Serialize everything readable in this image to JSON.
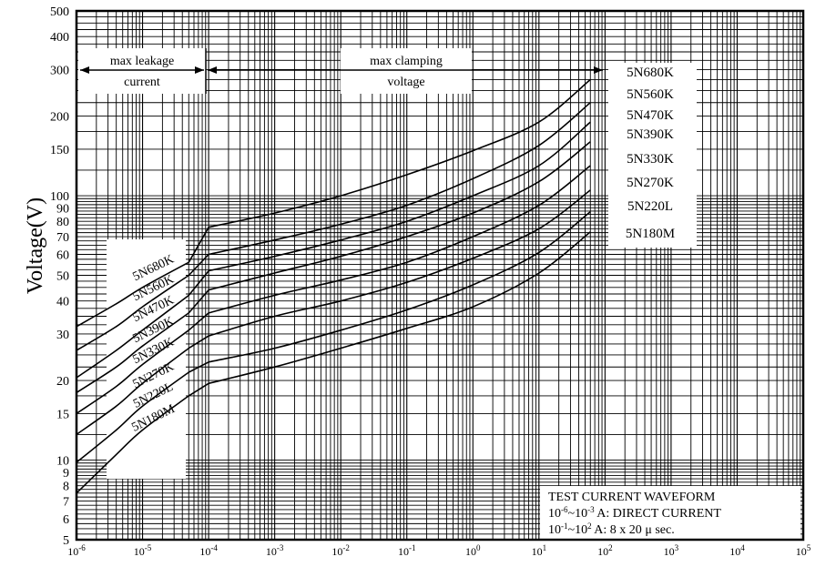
{
  "chart_data": {
    "type": "line",
    "title": "",
    "ylabel": "Voltage(V)",
    "xlabel": "",
    "xscale": "log",
    "yscale": "log",
    "xlim": [
      1e-06,
      100000
    ],
    "ylim": [
      5,
      500
    ],
    "grid": true,
    "y_ticks": [
      {
        "v": 5,
        "label": "5"
      },
      {
        "v": 6,
        "label": "6"
      },
      {
        "v": 7,
        "label": "7"
      },
      {
        "v": 8,
        "label": "8"
      },
      {
        "v": 9,
        "label": "9"
      },
      {
        "v": 10,
        "label": "10"
      },
      {
        "v": 15,
        "label": "15"
      },
      {
        "v": 20,
        "label": "20"
      },
      {
        "v": 30,
        "label": "30"
      },
      {
        "v": 40,
        "label": "40"
      },
      {
        "v": 50,
        "label": "50"
      },
      {
        "v": 60,
        "label": "60"
      },
      {
        "v": 70,
        "label": "70"
      },
      {
        "v": 80,
        "label": "80"
      },
      {
        "v": 90,
        "label": "90"
      },
      {
        "v": 100,
        "label": "100"
      },
      {
        "v": 150,
        "label": "150"
      },
      {
        "v": 200,
        "label": "200"
      },
      {
        "v": 300,
        "label": "300"
      },
      {
        "v": 400,
        "label": "400"
      },
      {
        "v": 500,
        "label": "500"
      }
    ],
    "x_ticks": [
      {
        "v": 1e-06,
        "base": "10",
        "exp": "-6"
      },
      {
        "v": 1e-05,
        "base": "10",
        "exp": "-5"
      },
      {
        "v": 0.0001,
        "base": "10",
        "exp": "-4"
      },
      {
        "v": 0.001,
        "base": "10",
        "exp": "-3"
      },
      {
        "v": 0.01,
        "base": "10",
        "exp": "-2"
      },
      {
        "v": 0.1,
        "base": "10",
        "exp": "-1"
      },
      {
        "v": 1,
        "base": "10",
        "exp": "0"
      },
      {
        "v": 10,
        "base": "10",
        "exp": "1"
      },
      {
        "v": 100,
        "base": "10",
        "exp": "2"
      },
      {
        "v": 1000,
        "base": "10",
        "exp": "3"
      },
      {
        "v": 10000,
        "base": "10",
        "exp": "4"
      },
      {
        "v": 100000,
        "base": "10",
        "exp": "5"
      }
    ],
    "series": [
      {
        "name": "5N680K",
        "leakage": [
          [
            1e-06,
            32
          ],
          [
            4e-06,
            39
          ],
          [
            1e-05,
            45
          ],
          [
            5e-05,
            56
          ]
        ],
        "clamping": [
          [
            0.0001,
            76
          ],
          [
            0.001,
            86
          ],
          [
            0.01,
            100
          ],
          [
            0.1,
            120
          ],
          [
            1,
            148
          ],
          [
            10,
            190
          ],
          [
            60,
            275
          ]
        ]
      },
      {
        "name": "5N560K",
        "leakage": [
          [
            1e-06,
            26
          ],
          [
            4e-06,
            32
          ],
          [
            1e-05,
            38
          ],
          [
            5e-05,
            50
          ]
        ],
        "clamping": [
          [
            0.0001,
            60
          ],
          [
            0.001,
            68
          ],
          [
            0.01,
            78
          ],
          [
            0.1,
            92
          ],
          [
            1,
            116
          ],
          [
            10,
            155
          ],
          [
            60,
            225
          ]
        ]
      },
      {
        "name": "5N470K",
        "leakage": [
          [
            1e-06,
            20.5
          ],
          [
            4e-06,
            26
          ],
          [
            1e-05,
            31
          ],
          [
            5e-05,
            42
          ]
        ],
        "clamping": [
          [
            0.0001,
            52
          ],
          [
            0.001,
            59
          ],
          [
            0.01,
            68
          ],
          [
            0.1,
            80
          ],
          [
            1,
            100
          ],
          [
            10,
            130
          ],
          [
            60,
            190
          ]
        ]
      },
      {
        "name": "5N390K",
        "leakage": [
          [
            1e-06,
            18
          ],
          [
            4e-06,
            22.5
          ],
          [
            1e-05,
            27
          ],
          [
            5e-05,
            36
          ]
        ],
        "clamping": [
          [
            0.0001,
            44
          ],
          [
            0.001,
            51
          ],
          [
            0.01,
            59
          ],
          [
            0.1,
            70
          ],
          [
            1,
            86
          ],
          [
            10,
            113
          ],
          [
            60,
            160
          ]
        ]
      },
      {
        "name": "5N330K",
        "leakage": [
          [
            1e-06,
            15
          ],
          [
            4e-06,
            19
          ],
          [
            1e-05,
            23
          ],
          [
            5e-05,
            31
          ]
        ],
        "clamping": [
          [
            0.0001,
            36
          ],
          [
            0.001,
            42
          ],
          [
            0.01,
            48
          ],
          [
            0.1,
            56
          ],
          [
            1,
            70
          ],
          [
            10,
            92
          ],
          [
            60,
            130
          ]
        ]
      },
      {
        "name": "5N270K",
        "leakage": [
          [
            1e-06,
            12.5
          ],
          [
            4e-06,
            16
          ],
          [
            1e-05,
            19.5
          ],
          [
            5e-05,
            26.5
          ]
        ],
        "clamping": [
          [
            0.0001,
            29.5
          ],
          [
            0.001,
            35
          ],
          [
            0.01,
            40
          ],
          [
            0.1,
            47
          ],
          [
            1,
            58
          ],
          [
            10,
            75
          ],
          [
            60,
            105
          ]
        ]
      },
      {
        "name": "5N220L",
        "leakage": [
          [
            1e-06,
            9.8
          ],
          [
            4e-06,
            13
          ],
          [
            1e-05,
            16
          ],
          [
            5e-05,
            21.5
          ]
        ],
        "clamping": [
          [
            0.0001,
            23.5
          ],
          [
            0.001,
            26.5
          ],
          [
            0.01,
            31
          ],
          [
            0.1,
            37
          ],
          [
            1,
            46
          ],
          [
            10,
            61
          ],
          [
            60,
            87
          ]
        ]
      },
      {
        "name": "5N180M",
        "leakage": [
          [
            1e-06,
            7.5
          ],
          [
            4e-06,
            10.5
          ],
          [
            1e-05,
            13
          ],
          [
            5e-05,
            17.5
          ]
        ],
        "clamping": [
          [
            0.0001,
            19.5
          ],
          [
            0.001,
            22.5
          ],
          [
            0.01,
            26.5
          ],
          [
            0.1,
            31.5
          ],
          [
            1,
            38
          ],
          [
            10,
            51
          ],
          [
            60,
            73
          ]
        ]
      }
    ],
    "left_labels": [
      "5N680K",
      "5N560K",
      "5N470K",
      "5N390K",
      "5N330K",
      "5N270K",
      "5N220L",
      "5N180M"
    ],
    "right_labels": [
      "5N680K",
      "5N560K",
      "5N470K",
      "5N390K",
      "5N330K",
      "5N270K",
      "5N220L",
      "5N180M"
    ],
    "annotations": {
      "leakage_line1": "max leakage",
      "leakage_line2": "current",
      "clamping_line1": "max clamping",
      "clamping_line2": "voltage"
    },
    "waveform": {
      "title": "TEST CURRENT WAVEFORM",
      "line1_b1": "10",
      "line1_e1": "-6",
      "line1_sep": "~",
      "line1_b2": "10",
      "line1_e2": "-3",
      "line1_text": " A: DIRECT CURRENT",
      "line2_b1": "10",
      "line2_e1": "-1",
      "line2_sep": "~",
      "line2_b2": "10",
      "line2_e2": "2",
      "line2_text": " A: 8 x 20 ",
      "line2_mu": "μ",
      "line2_end": " sec."
    }
  }
}
